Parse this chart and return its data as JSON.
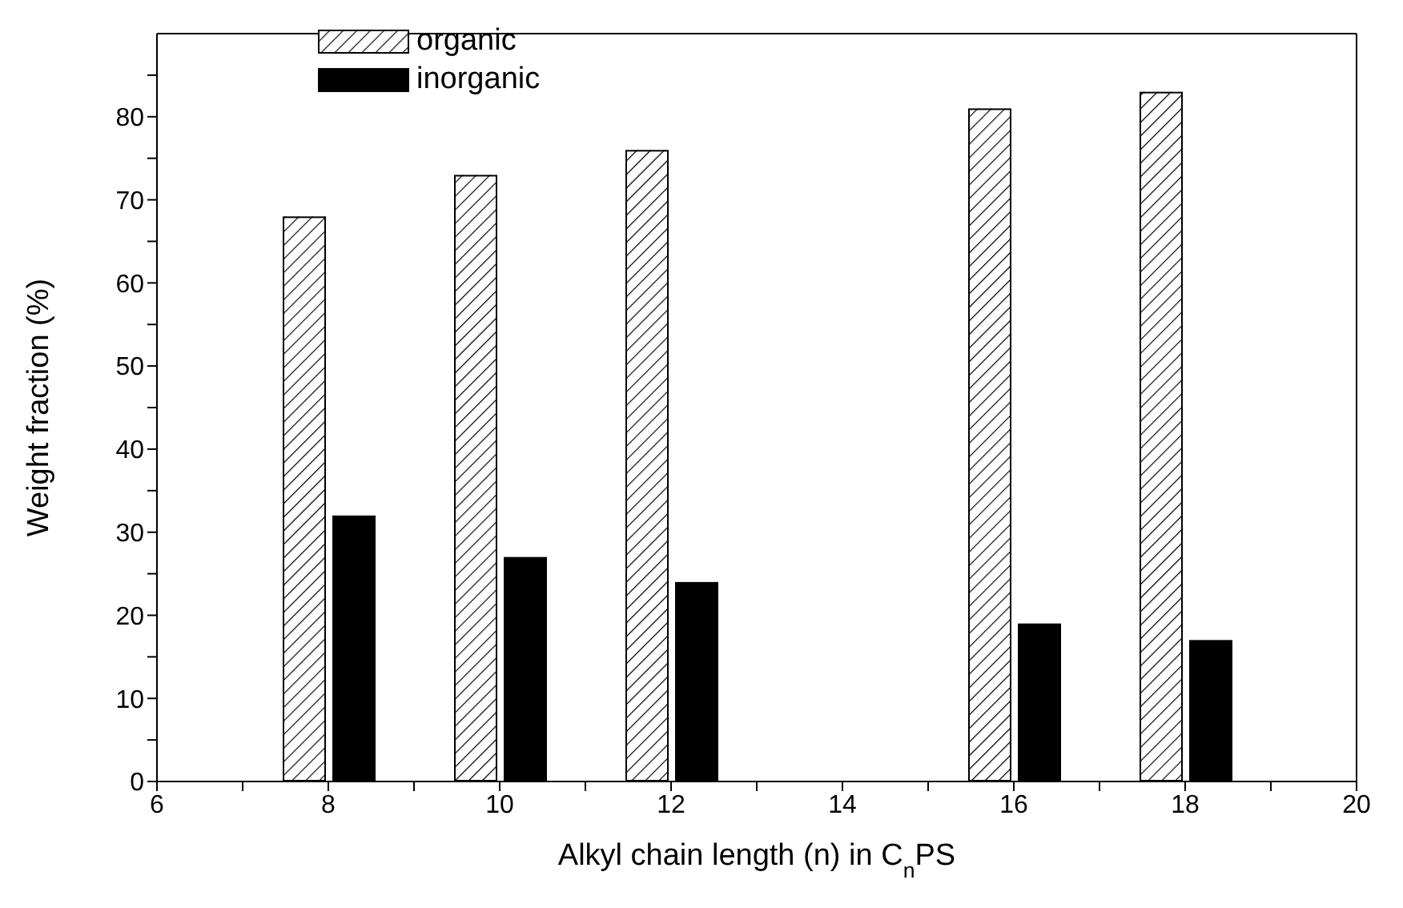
{
  "chart_data": {
    "type": "bar",
    "xlabel": "Alkyl chain length (n) in C$_{n}$PS",
    "ylabel": "Weight fraction (%)",
    "xlim": [
      6,
      20
    ],
    "xticks": [
      6,
      {
        "value": 7,
        "label": null
      },
      8,
      {
        "value": 9,
        "label": null
      },
      10,
      {
        "value": 11,
        "label": null
      },
      12,
      {
        "value": 13,
        "label": null
      },
      14,
      {
        "value": 15,
        "label": null
      },
      16,
      {
        "value": 17,
        "label": null
      },
      18,
      {
        "value": 19,
        "label": null
      },
      20
    ],
    "ylim": [
      0,
      90
    ],
    "yticks": [
      0,
      {
        "value": 5,
        "label": null
      },
      10,
      {
        "value": 15,
        "label": null
      },
      20,
      {
        "value": 25,
        "label": null
      },
      30,
      {
        "value": 35,
        "label": null
      },
      40,
      {
        "value": 45,
        "label": null
      },
      50,
      {
        "value": 55,
        "label": null
      },
      60,
      {
        "value": 65,
        "label": null
      },
      70,
      {
        "value": 75,
        "label": null
      },
      80,
      {
        "value": 85,
        "label": null
      }
    ],
    "grid": false,
    "legend": "top left",
    "series": [
      {
        "name": "organic",
        "color": "#ffffff",
        "x": [
          8,
          10,
          12,
          16,
          18
        ],
        "values": [
          68,
          73,
          76,
          81,
          83
        ]
      },
      {
        "name": "inorganic",
        "color": "#000000",
        "x": [
          8,
          10,
          12,
          16,
          18
        ],
        "values": [
          32,
          27,
          24,
          19,
          17
        ]
      }
    ]
  }
}
